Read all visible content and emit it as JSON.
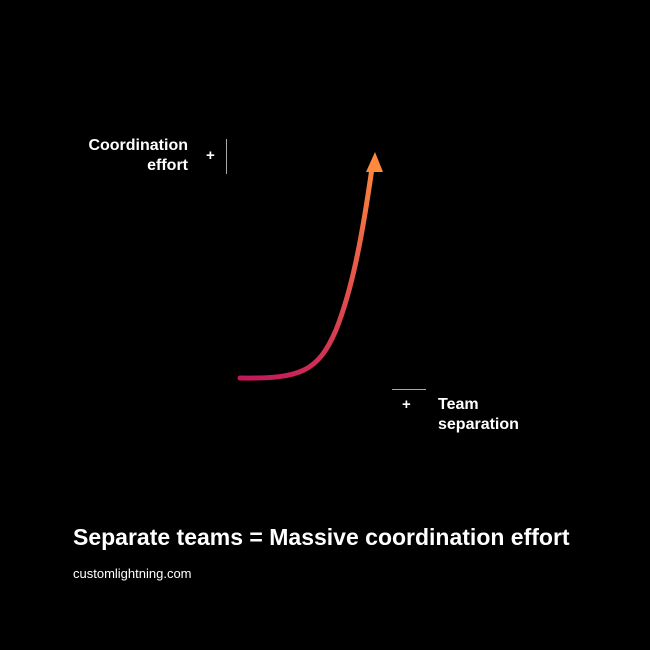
{
  "diagram": {
    "y_axis_label": [
      "Coordination",
      "effort"
    ],
    "y_axis_marker": "+",
    "x_axis_label": [
      "Team",
      "separation"
    ],
    "x_axis_marker": "+",
    "curve_gradient": {
      "start": "#c2185b",
      "end": "#ff8a3d"
    },
    "axis_color": "#aaaaaa"
  },
  "headline": "Separate teams = Massive coordination effort",
  "website": "customlightning.com"
}
